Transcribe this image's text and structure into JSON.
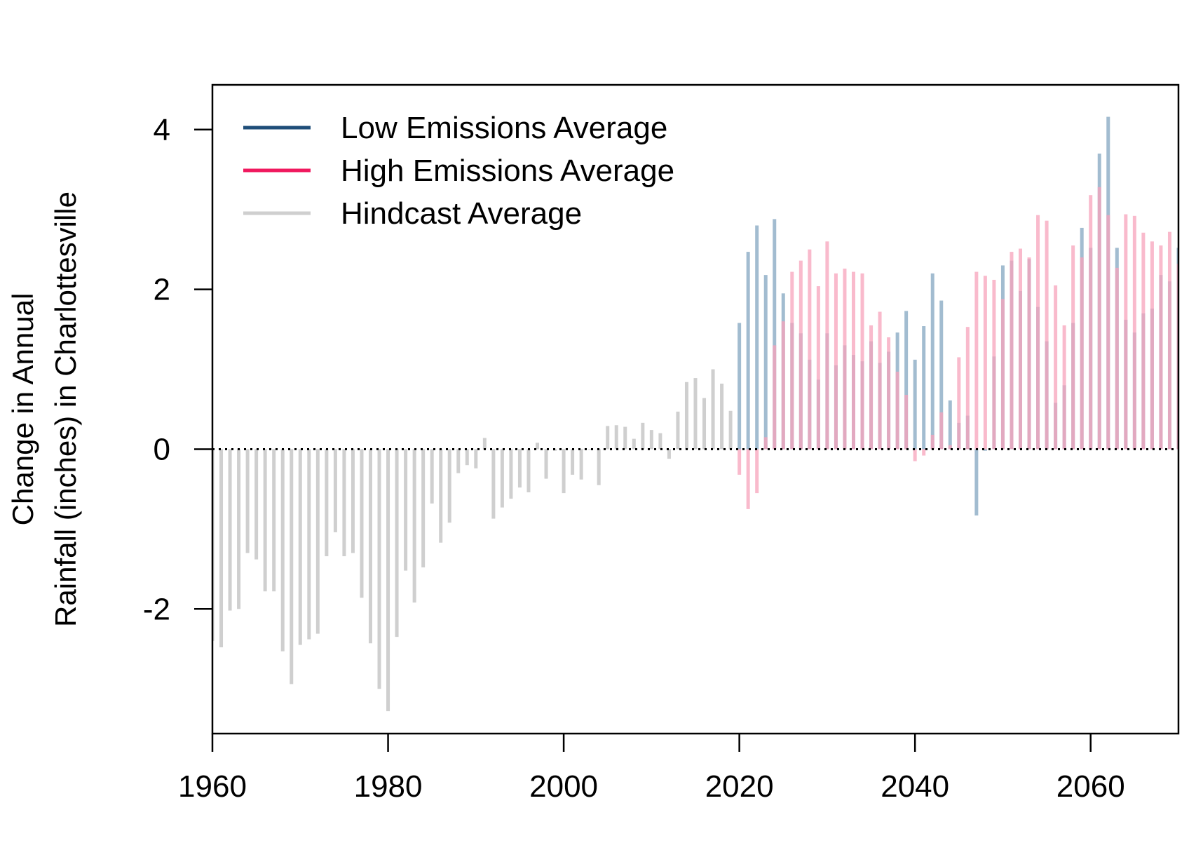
{
  "chart_data": {
    "type": "bar",
    "title": "",
    "xlabel": "",
    "ylabel_lines": [
      "Change in Annual",
      "Rainfall (inches) in Charlottesville"
    ],
    "xlim": [
      1960,
      2070
    ],
    "ylim": [
      -3.56,
      4.56
    ],
    "x_ticks": [
      1960,
      1980,
      2000,
      2020,
      2040,
      2060
    ],
    "y_ticks": [
      -2,
      0,
      2,
      4
    ],
    "reference_line": {
      "y": 0,
      "style": "dotted"
    },
    "legend_position": "top-left",
    "series": [
      {
        "name": "Low Emissions Average",
        "color": "#1f4e79",
        "bar_color": "#a2bcd0",
        "x": [
          2020,
          2021,
          2022,
          2023,
          2024,
          2025,
          2026,
          2027,
          2028,
          2029,
          2030,
          2031,
          2032,
          2033,
          2034,
          2035,
          2036,
          2037,
          2038,
          2039,
          2040,
          2041,
          2042,
          2043,
          2044,
          2045,
          2046,
          2047,
          2048,
          2049,
          2050,
          2051,
          2052,
          2053,
          2054,
          2055,
          2056,
          2057,
          2058,
          2059,
          2060,
          2061,
          2062,
          2063,
          2064,
          2065,
          2066,
          2067,
          2068,
          2069,
          2070
        ],
        "values": [
          1.58,
          2.47,
          2.8,
          2.18,
          2.88,
          1.95,
          1.58,
          1.45,
          1.12,
          0.87,
          1.45,
          1.05,
          1.3,
          1.18,
          1.1,
          1.35,
          1.08,
          1.22,
          1.46,
          1.73,
          1.12,
          1.54,
          2.2,
          1.86,
          0.61,
          0.33,
          0.42,
          -0.83,
          -0.02,
          1.16,
          2.3,
          2.36,
          1.98,
          2.38,
          1.78,
          1.35,
          0.58,
          0.8,
          1.58,
          2.77,
          2.52,
          3.7,
          4.16,
          2.52,
          1.62,
          1.46,
          1.7,
          1.76,
          2.18,
          2.1,
          2.52
        ]
      },
      {
        "name": "High Emissions Average",
        "color": "#f0185e",
        "bar_color": "#f7a3bb",
        "x": [
          2020,
          2021,
          2022,
          2023,
          2024,
          2025,
          2026,
          2027,
          2028,
          2029,
          2030,
          2031,
          2032,
          2033,
          2034,
          2035,
          2036,
          2037,
          2038,
          2039,
          2040,
          2041,
          2042,
          2043,
          2044,
          2045,
          2046,
          2047,
          2048,
          2049,
          2050,
          2051,
          2052,
          2053,
          2054,
          2055,
          2056,
          2057,
          2058,
          2059,
          2060,
          2061,
          2062,
          2063,
          2064,
          2065,
          2066,
          2067,
          2068,
          2069,
          2070
        ],
        "values": [
          -0.32,
          -0.75,
          -0.55,
          0.15,
          1.3,
          1.6,
          2.22,
          2.36,
          2.5,
          2.04,
          2.6,
          2.2,
          2.26,
          2.22,
          2.2,
          1.55,
          1.72,
          1.4,
          0.97,
          0.68,
          -0.15,
          -0.08,
          0.18,
          0.46,
          0.05,
          1.15,
          1.53,
          2.22,
          2.17,
          2.12,
          1.88,
          2.47,
          2.51,
          2.4,
          2.93,
          2.86,
          2.05,
          1.55,
          2.55,
          2.4,
          3.18,
          3.28,
          2.93,
          2.27,
          2.94,
          2.92,
          2.71,
          2.6,
          2.55,
          2.72,
          2.32
        ]
      },
      {
        "name": "Hindcast Average",
        "color": "#cfcfcf",
        "bar_color": "#cfcfcf",
        "x": [
          1960,
          1961,
          1962,
          1963,
          1964,
          1965,
          1966,
          1967,
          1968,
          1969,
          1970,
          1971,
          1972,
          1973,
          1974,
          1975,
          1976,
          1977,
          1978,
          1979,
          1980,
          1981,
          1982,
          1983,
          1984,
          1985,
          1986,
          1987,
          1988,
          1989,
          1990,
          1991,
          1992,
          1993,
          1994,
          1995,
          1996,
          1997,
          1998,
          1999,
          2000,
          2001,
          2002,
          2003,
          2004,
          2005,
          2006,
          2007,
          2008,
          2009,
          2010,
          2011,
          2012,
          2013,
          2014,
          2015,
          2016,
          2017,
          2018,
          2019
        ],
        "values": [
          -2.4,
          -2.48,
          -2.02,
          -2.0,
          -1.3,
          -1.38,
          -1.78,
          -1.78,
          -2.53,
          -2.94,
          -2.45,
          -2.38,
          -2.31,
          -1.34,
          -1.04,
          -1.34,
          -1.3,
          -1.86,
          -2.43,
          -3.0,
          -3.28,
          -2.35,
          -1.52,
          -1.92,
          -1.48,
          -0.68,
          -1.17,
          -0.92,
          -0.3,
          -0.2,
          -0.24,
          0.14,
          -0.87,
          -0.73,
          -0.62,
          -0.48,
          -0.54,
          0.08,
          -0.37,
          -0.02,
          -0.55,
          -0.32,
          -0.38,
          0.0,
          -0.45,
          0.29,
          0.3,
          0.28,
          0.13,
          0.33,
          0.24,
          0.2,
          -0.12,
          0.47,
          0.84,
          0.89,
          0.64,
          1.0,
          0.82,
          0.48
        ]
      }
    ]
  }
}
